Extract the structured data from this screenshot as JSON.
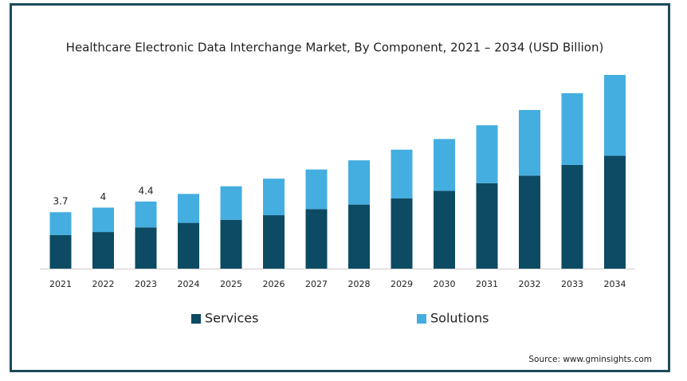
{
  "chart_data": {
    "type": "stacked-bar",
    "title": "Healthcare Electronic Data Interchange Market, By Component, 2021 – 2034 (USD Billion)",
    "categories": [
      "2021",
      "2022",
      "2023",
      "2024",
      "2025",
      "2026",
      "2027",
      "2028",
      "2029",
      "2030",
      "2031",
      "2032",
      "2033",
      "2034"
    ],
    "series": [
      {
        "name": "Services",
        "color": "#0d4a63",
        "values": [
          2.2,
          2.4,
          2.7,
          3.0,
          3.2,
          3.5,
          3.9,
          4.2,
          4.6,
          5.1,
          5.6,
          6.1,
          6.8,
          7.4
        ]
      },
      {
        "name": "Solutions",
        "color": "#44aee0",
        "values": [
          1.5,
          1.6,
          1.7,
          1.9,
          2.2,
          2.4,
          2.6,
          2.9,
          3.2,
          3.4,
          3.8,
          4.3,
          4.7,
          5.3
        ]
      }
    ],
    "totals": [
      3.7,
      4,
      4.4
    ],
    "source": "Source: www.gminsights.com"
  }
}
